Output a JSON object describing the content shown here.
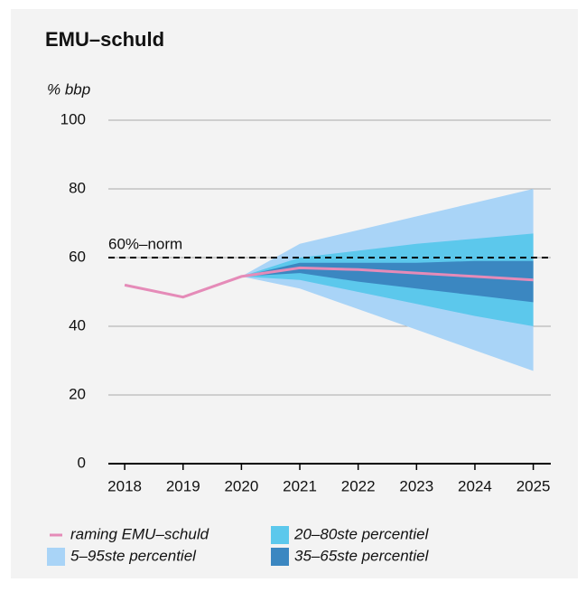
{
  "chart_data": {
    "type": "fan",
    "title": "EMU–schuld",
    "y_label": "% bbp",
    "x": [
      2018,
      2019,
      2020,
      2021,
      2022,
      2023,
      2024,
      2025
    ],
    "xlim": [
      2017.72,
      2025.3
    ],
    "xticks": [
      2018,
      2019,
      2020,
      2021,
      2022,
      2023,
      2024,
      2025
    ],
    "ylim": [
      0,
      100
    ],
    "yticks": [
      0,
      20,
      40,
      60,
      80,
      100
    ],
    "grid": true,
    "reference_line": {
      "value": 60,
      "label": "60%–norm"
    },
    "series": [
      {
        "name": "raming EMU–schuld",
        "kind": "line",
        "color": "#e58bb8",
        "values": [
          52,
          48.5,
          54.5,
          57,
          56.5,
          55.5,
          54.5,
          53.5
        ]
      },
      {
        "name": "5–95ste percentiel",
        "kind": "band",
        "color": "#a9d4f7",
        "lower": [
          null,
          null,
          54.5,
          51,
          45,
          39,
          33,
          27
        ],
        "upper": [
          null,
          null,
          54.5,
          64,
          68,
          72,
          76,
          80
        ]
      },
      {
        "name": "20–80ste percentiel",
        "kind": "band",
        "color": "#5cc8ec",
        "lower": [
          null,
          null,
          54.5,
          53.5,
          50,
          46.5,
          43,
          40
        ],
        "upper": [
          null,
          null,
          54.5,
          60,
          62,
          64,
          65.5,
          67
        ]
      },
      {
        "name": "35–65ste percentiel",
        "kind": "band",
        "color": "#3b87c1",
        "lower": [
          null,
          null,
          54.5,
          55.5,
          53,
          51,
          49,
          47
        ],
        "upper": [
          null,
          null,
          54.5,
          58.5,
          58.5,
          58.5,
          59,
          59
        ]
      }
    ]
  }
}
